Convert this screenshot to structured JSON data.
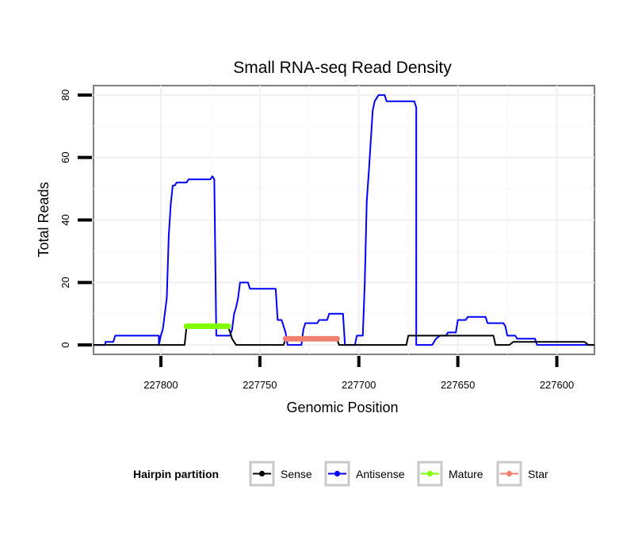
{
  "chart_data": {
    "type": "line",
    "title": "Small RNA-seq Read Density",
    "xlabel": "Genomic Position",
    "ylabel": "Total Reads",
    "x_reversed": true,
    "xlim": [
      227834,
      227581
    ],
    "ylim": [
      -3,
      83
    ],
    "x_ticks": [
      227800,
      227750,
      227700,
      227650,
      227600
    ],
    "x_tick_labels": [
      "227800",
      "227750",
      "227700",
      "227650",
      "227600"
    ],
    "y_ticks": [
      0,
      20,
      40,
      60,
      80
    ],
    "y_tick_labels": [
      "0",
      "20",
      "40",
      "60",
      "80"
    ],
    "grid": true,
    "legend": {
      "title": "Hairpin partition",
      "position": "bottom",
      "entries": [
        "Sense",
        "Antisense",
        "Mature",
        "Star"
      ]
    },
    "series": [
      {
        "name": "Sense",
        "color": "#000000",
        "points": [
          [
            227834,
            0
          ],
          [
            227800,
            0
          ],
          [
            227788,
            0
          ],
          [
            227787,
            6
          ],
          [
            227785,
            6
          ],
          [
            227766,
            6
          ],
          [
            227764,
            2
          ],
          [
            227762,
            0
          ],
          [
            227747,
            0
          ],
          [
            227738,
            0
          ],
          [
            227737,
            2
          ],
          [
            227736,
            2
          ],
          [
            227711,
            2
          ],
          [
            227710,
            0
          ],
          [
            227676,
            0
          ],
          [
            227675,
            3
          ],
          [
            227673,
            3
          ],
          [
            227650,
            3
          ],
          [
            227649,
            3
          ],
          [
            227648,
            3
          ],
          [
            227634,
            3
          ],
          [
            227632,
            3
          ],
          [
            227631,
            0
          ],
          [
            227624,
            0
          ],
          [
            227622,
            1
          ],
          [
            227620,
            1
          ],
          [
            227614,
            1
          ],
          [
            227586,
            1
          ],
          [
            227584,
            0
          ],
          [
            227581,
            0
          ]
        ]
      },
      {
        "name": "Antisense",
        "color": "#0000ff",
        "points": [
          [
            227834,
            0
          ],
          [
            227828,
            0
          ],
          [
            227828,
            1
          ],
          [
            227824,
            1
          ],
          [
            227823,
            3
          ],
          [
            227801,
            3
          ],
          [
            227801,
            0
          ],
          [
            227800,
            3
          ],
          [
            227799,
            5
          ],
          [
            227798,
            10
          ],
          [
            227797,
            15
          ],
          [
            227796,
            35
          ],
          [
            227795,
            45
          ],
          [
            227794,
            51
          ],
          [
            227793,
            51
          ],
          [
            227792,
            52
          ],
          [
            227787,
            52
          ],
          [
            227786,
            53
          ],
          [
            227775,
            53
          ],
          [
            227774,
            54
          ],
          [
            227773,
            53
          ],
          [
            227772,
            3
          ],
          [
            227765,
            3
          ],
          [
            227764,
            5
          ],
          [
            227763,
            10
          ],
          [
            227762,
            12
          ],
          [
            227761,
            15
          ],
          [
            227760,
            20
          ],
          [
            227756,
            20
          ],
          [
            227755,
            18
          ],
          [
            227742,
            18
          ],
          [
            227741,
            8
          ],
          [
            227739,
            8
          ],
          [
            227737,
            4
          ],
          [
            227736,
            0
          ],
          [
            227729,
            0
          ],
          [
            227728,
            5
          ],
          [
            227727,
            7
          ],
          [
            227721,
            7
          ],
          [
            227720,
            8
          ],
          [
            227716,
            8
          ],
          [
            227715,
            10
          ],
          [
            227708,
            10
          ],
          [
            227707,
            0
          ],
          [
            227702,
            0
          ],
          [
            227701,
            3
          ],
          [
            227698,
            3
          ],
          [
            227697,
            20
          ],
          [
            227696,
            46
          ],
          [
            227695,
            55
          ],
          [
            227694,
            65
          ],
          [
            227693,
            75
          ],
          [
            227692,
            78
          ],
          [
            227690,
            80
          ],
          [
            227687,
            80
          ],
          [
            227686,
            78
          ],
          [
            227672,
            78
          ],
          [
            227671,
            76
          ],
          [
            227671,
            0
          ],
          [
            227663,
            0
          ],
          [
            227661,
            2
          ],
          [
            227659,
            3
          ],
          [
            227656,
            3
          ],
          [
            227655,
            4
          ],
          [
            227651,
            4
          ],
          [
            227650,
            8
          ],
          [
            227646,
            8
          ],
          [
            227645,
            9
          ],
          [
            227636,
            9
          ],
          [
            227635,
            7
          ],
          [
            227627,
            7
          ],
          [
            227626,
            6
          ],
          [
            227625,
            3
          ],
          [
            227621,
            3
          ],
          [
            227620,
            2
          ],
          [
            227617,
            2
          ],
          [
            227616,
            2
          ],
          [
            227611,
            2
          ],
          [
            227610,
            0
          ],
          [
            227581,
            0
          ]
        ]
      },
      {
        "name": "Mature",
        "color": "#7fff00",
        "from": 227787,
        "to": 227766,
        "value": 6
      },
      {
        "name": "Star",
        "color": "#f08070",
        "from": 227737,
        "to": 227711,
        "value": 2
      }
    ]
  }
}
